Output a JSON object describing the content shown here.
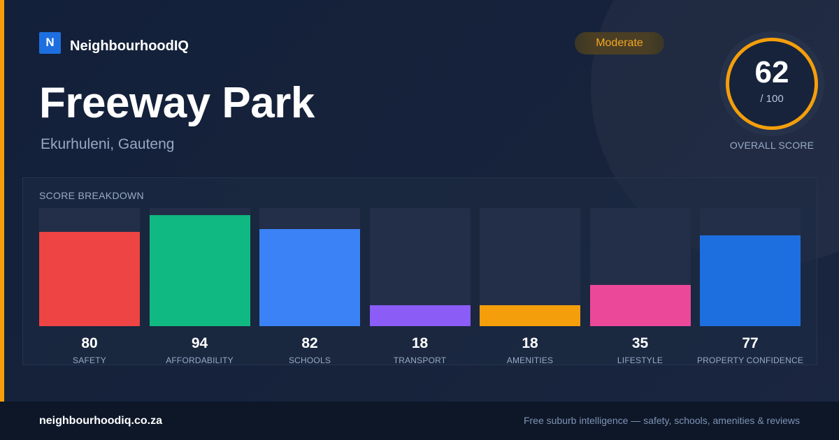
{
  "brand": {
    "logo_letter": "N",
    "name": "NeighbourhoodIQ"
  },
  "suburb": {
    "name": "Freeway Park",
    "location": "Ekurhuleni, Gauteng"
  },
  "rating_badge": {
    "label": "Moderate",
    "color": "#f5a623"
  },
  "overall_score": {
    "value": "62",
    "max_label": "/ 100",
    "caption": "OVERALL SCORE",
    "ring_color": "#f59e0b"
  },
  "breakdown": {
    "title": "SCORE BREAKDOWN",
    "max": 100,
    "items": [
      {
        "label": "SAFETY",
        "value": 80,
        "color": "#ef4444"
      },
      {
        "label": "AFFORDABILITY",
        "value": 94,
        "color": "#10b981"
      },
      {
        "label": "SCHOOLS",
        "value": 82,
        "color": "#3b82f6"
      },
      {
        "label": "TRANSPORT",
        "value": 18,
        "color": "#8b5cf6"
      },
      {
        "label": "AMENITIES",
        "value": 18,
        "color": "#f59e0b"
      },
      {
        "label": "LIFESTYLE",
        "value": 35,
        "color": "#ec4899"
      },
      {
        "label": "PROPERTY CONFIDENCE",
        "value": 77,
        "color": "#1d6fe0"
      }
    ]
  },
  "footer": {
    "url": "neighbourhoodiq.co.za",
    "tagline": "Free suburb intelligence — safety, schools, amenities & reviews"
  }
}
